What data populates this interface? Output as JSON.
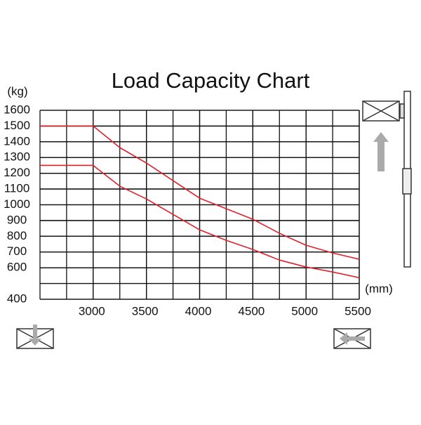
{
  "chart_data": {
    "type": "line",
    "title": "Load Capacity Chart",
    "y_unit": "(kg)",
    "x_unit": "(mm)",
    "x": [
      2500,
      3000,
      3250,
      3500,
      4000,
      4250,
      4500,
      4750,
      5000,
      5250,
      5500
    ],
    "series": [
      {
        "color": "#e0202a",
        "values": [
          1500,
          1500,
          1363,
          1265,
          1042,
          975,
          908,
          819,
          743,
          694,
          654
        ]
      },
      {
        "color": "#e0202a",
        "values": [
          1250,
          1250,
          1118,
          1037,
          841,
          774,
          716,
          649,
          605,
          573,
          537
        ]
      }
    ],
    "xlim": [
      2500,
      5500
    ],
    "xticks": [
      3000,
      3500,
      4000,
      4500,
      5000,
      5500
    ],
    "ylim": [
      400,
      1600
    ],
    "yticks": [
      400,
      600,
      700,
      800,
      900,
      1000,
      1100,
      1200,
      1300,
      1400,
      1500,
      1600
    ],
    "grid": true
  }
}
